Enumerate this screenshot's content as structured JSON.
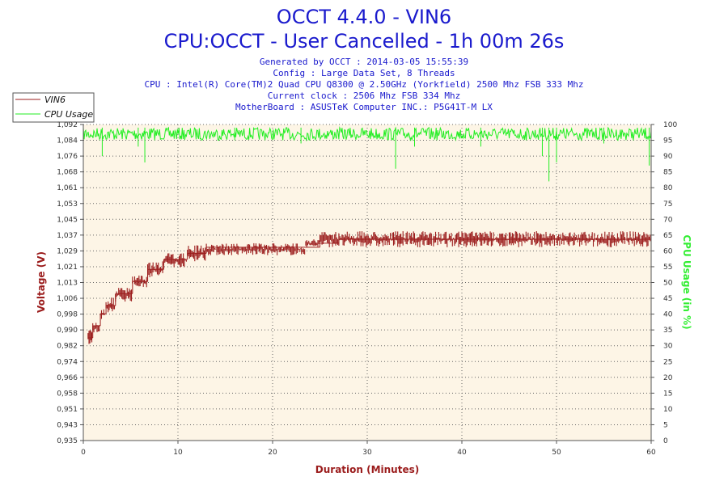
{
  "chart_data": {
    "type": "line",
    "title": "OCCT 4.4.0 - VIN6",
    "subtitle": "CPU:OCCT - User Cancelled - 1h 00m 26s",
    "info_lines": [
      "Generated by OCCT : 2014-03-05 15:55:39",
      "Config : Large Data Set, 8 Threads",
      "CPU : Intel(R) Core(TM)2 Quad CPU Q8300 @ 2.50GHz (Yorkfield) 2500 Mhz FSB 333 Mhz",
      "Current clock : 2506 Mhz FSB 334 Mhz",
      "MotherBoard : ASUSTeK Computer INC.: P5G41T-M LX"
    ],
    "xlabel": "Duration (Minutes)",
    "ylabel_left": "Voltage (V)",
    "ylabel_right": "CPU Usage (in %)",
    "xlim": [
      0,
      60
    ],
    "x_ticks": [
      "0",
      "10",
      "20",
      "30",
      "40",
      "50",
      "60"
    ],
    "ylim_left": [
      0.935,
      1.092
    ],
    "y_ticks_left": [
      "0,935",
      "0,943",
      "0,951",
      "0,958",
      "0,966",
      "0,974",
      "0,982",
      "0,990",
      "0,998",
      "1,006",
      "1,013",
      "1,021",
      "1,029",
      "1,037",
      "1,045",
      "1,053",
      "1,061",
      "1,068",
      "1,076",
      "1,084",
      "1,092"
    ],
    "ylim_right": [
      0,
      100
    ],
    "y_ticks_right": [
      "0",
      "5",
      "10",
      "15",
      "20",
      "25",
      "30",
      "35",
      "40",
      "45",
      "50",
      "55",
      "60",
      "65",
      "70",
      "75",
      "80",
      "85",
      "90",
      "95",
      "100"
    ],
    "grid": true,
    "legend_position": "top-left",
    "background_color": "#fdf5e6",
    "series": [
      {
        "name": "VIN6",
        "color": "#9b1c1c",
        "axis": "left",
        "x": [
          0.5,
          1.0,
          1.8,
          2.4,
          3.4,
          5.2,
          6.8,
          8.5,
          11.0,
          13.0,
          15.0,
          23.5,
          25.0,
          27.0,
          60.0
        ],
        "y": [
          0.986,
          0.992,
          0.998,
          1.002,
          1.008,
          1.014,
          1.02,
          1.025,
          1.028,
          1.031,
          1.031,
          1.031,
          1.033,
          1.035,
          1.035
        ],
        "band_low": [
          0.983,
          0.988,
          0.994,
          0.998,
          1.004,
          1.011,
          1.016,
          1.021,
          1.024,
          1.027,
          1.027,
          1.031,
          1.031,
          1.031,
          1.031
        ],
        "band_high": [
          0.99,
          0.994,
          1.001,
          1.006,
          1.011,
          1.017,
          1.024,
          1.028,
          1.032,
          1.033,
          1.033,
          1.035,
          1.039,
          1.039,
          1.039
        ]
      },
      {
        "name": "CPU Usage",
        "color": "#22ee22",
        "axis": "right",
        "baseline": 99,
        "noise_low": 95,
        "spikes": [
          {
            "x": 2.0,
            "y": 90
          },
          {
            "x": 5.8,
            "y": 93
          },
          {
            "x": 6.5,
            "y": 88
          },
          {
            "x": 16.0,
            "y": 95
          },
          {
            "x": 23.0,
            "y": 94
          },
          {
            "x": 33.0,
            "y": 86
          },
          {
            "x": 35.0,
            "y": 93
          },
          {
            "x": 42.0,
            "y": 93
          },
          {
            "x": 48.5,
            "y": 90
          },
          {
            "x": 49.2,
            "y": 82
          },
          {
            "x": 50.0,
            "y": 88
          },
          {
            "x": 55.0,
            "y": 94
          },
          {
            "x": 59.8,
            "y": 87
          }
        ]
      }
    ]
  }
}
